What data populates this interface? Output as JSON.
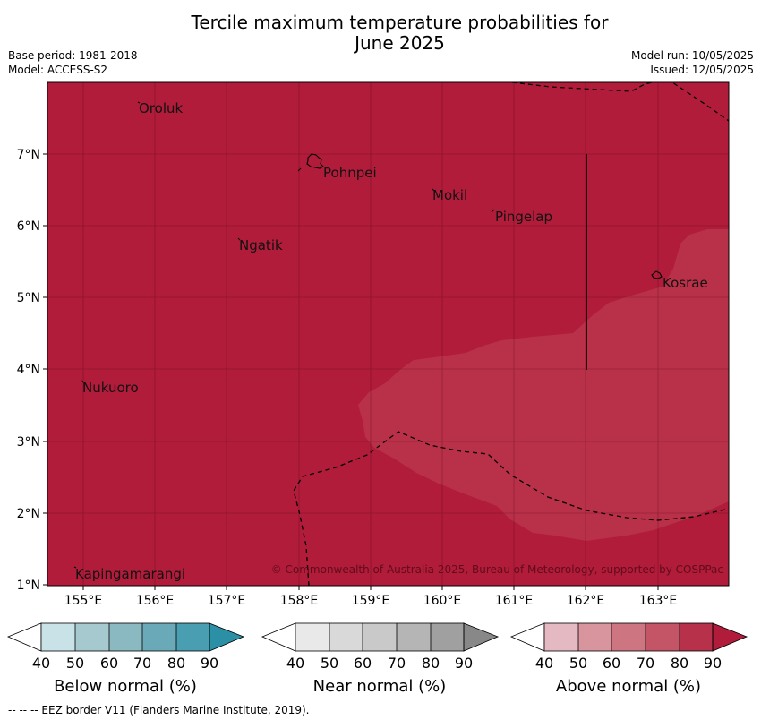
{
  "title_line1": "Tercile maximum temperature probabilities for",
  "title_line2": "June 2025",
  "meta_left": [
    "Base period: 1981-2018",
    "Model: ACCESS-S2"
  ],
  "meta_right": [
    "Model run: 10/05/2025",
    "Issued: 12/05/2025"
  ],
  "map": {
    "lon_range": [
      154.5,
      164.0
    ],
    "lat_range": [
      1.0,
      8.0
    ],
    "lon_ticks": [
      "155°E",
      "156°E",
      "157°E",
      "158°E",
      "159°E",
      "160°E",
      "161°E",
      "162°E",
      "163°E"
    ],
    "lat_ticks": [
      "1°N",
      "2°N",
      "3°N",
      "4°N",
      "5°N",
      "6°N",
      "7°N"
    ],
    "places": [
      "Oroluk",
      "Pohnpei",
      "Mokil",
      "Pingelap",
      "Ngatik",
      "Kosrae",
      "Nukuoro",
      "Kapingamarangi"
    ],
    "background_class": "Above normal 80-90%",
    "inner_class": "Above normal 70-80%",
    "copyright": "© Commonwealth of Australia 2025, Bureau of Meteorology, supported by COSPPac"
  },
  "colorbars": [
    {
      "title": "Below normal (%)",
      "ticks": [
        "40",
        "50",
        "60",
        "70",
        "80",
        "90"
      ],
      "colors": [
        "#c9e2e8",
        "#a6c9cf",
        "#8bb9c2",
        "#6aaab8",
        "#4a9eb1",
        "#2b8fa6"
      ]
    },
    {
      "title": "Near normal (%)",
      "ticks": [
        "40",
        "50",
        "60",
        "70",
        "80",
        "90"
      ],
      "colors": [
        "#e9e9e9",
        "#d9d9d9",
        "#c9c9c9",
        "#b5b5b5",
        "#a0a0a0",
        "#888888"
      ]
    },
    {
      "title": "Above normal (%)",
      "ticks": [
        "40",
        "50",
        "60",
        "70",
        "80",
        "90"
      ],
      "colors": [
        "#e4b9c1",
        "#d9959e",
        "#cd7681",
        "#c45567",
        "#b7314b",
        "#b01c3a"
      ]
    }
  ],
  "footnote": "--  --  -- EEZ border V11 (Flanders Marine Institute, 2019)."
}
